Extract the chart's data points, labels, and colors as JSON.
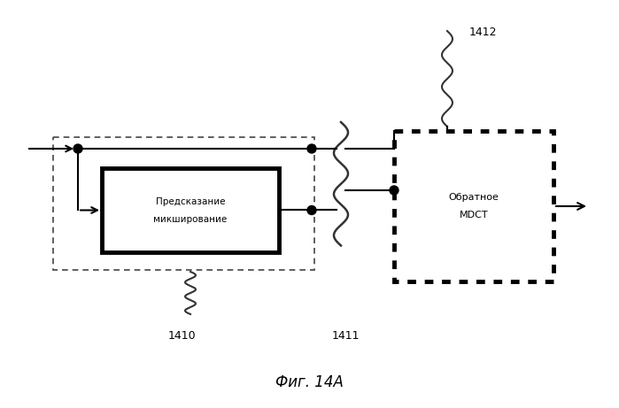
{
  "title": "Фиг. 14А",
  "box1_text_line1": "Предсказание",
  "box1_text_line2": "микширование",
  "box2_text_line1": "Обратное",
  "box2_text_line2": "MDCT",
  "label_1410": "1410",
  "label_1411": "1411",
  "label_1412": "1412",
  "bg_color": "#ffffff",
  "box_color": "#000000",
  "line_color": "#000000"
}
